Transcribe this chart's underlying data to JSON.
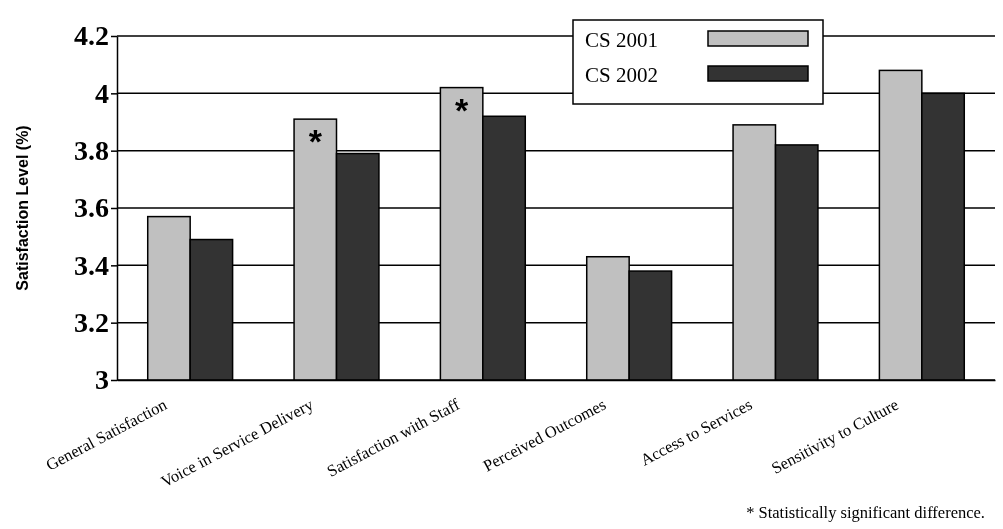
{
  "chart_data": {
    "type": "bar",
    "ylabel": "Satisfaction Level (%)",
    "categories": [
      "General Satisfaction",
      "Voice in Service Delivery",
      "Satisfaction with Staff",
      "Perceived Outcomes",
      "Access to Services",
      "Sensitivity to Culture"
    ],
    "series": [
      {
        "name": "CS 2001",
        "color": "#c0c0c0",
        "values": [
          3.57,
          3.91,
          4.02,
          3.43,
          3.89,
          4.08
        ]
      },
      {
        "name": "CS 2002",
        "color": "#333333",
        "values": [
          3.49,
          3.79,
          3.92,
          3.38,
          3.82,
          4.0
        ]
      }
    ],
    "ylim": [
      3,
      4.2
    ],
    "yticks": [
      3,
      3.2,
      3.4,
      3.6,
      3.8,
      4,
      4.2
    ],
    "grid": "y",
    "legend": "top right",
    "annotations": [
      {
        "text": "*",
        "x": "Voice in Service Delivery",
        "y": 3.91
      },
      {
        "text": "*",
        "x": "Satisfaction with Staff",
        "y": 4.02
      },
      "* Statistically significant difference."
    ]
  }
}
